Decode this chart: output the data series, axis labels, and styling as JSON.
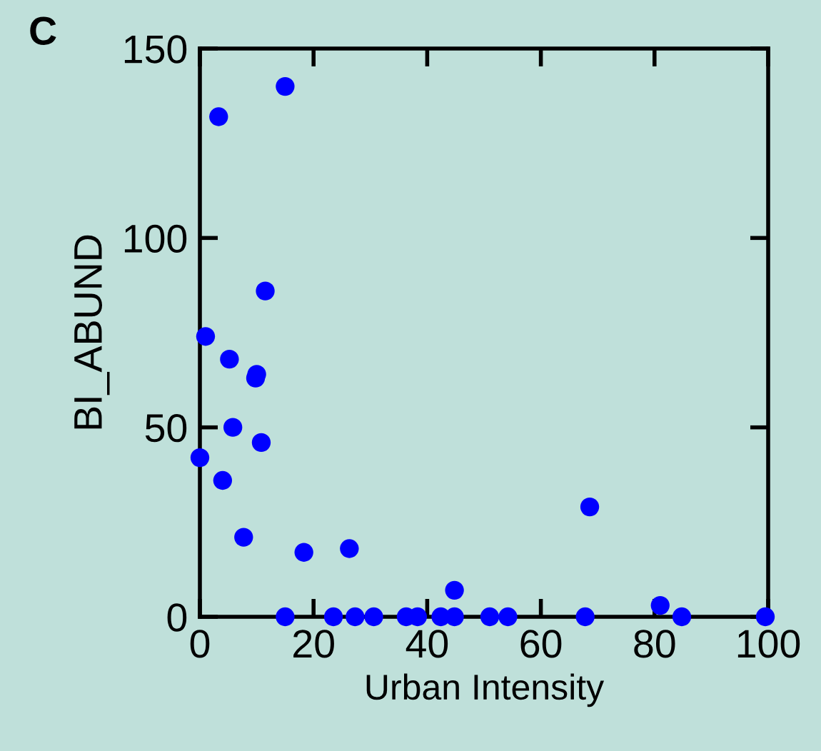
{
  "chart_data": {
    "type": "scatter",
    "title": "C",
    "xlabel": "Urban Intensity",
    "ylabel": "BI_ABUND",
    "x": [
      0,
      1,
      3.3,
      4,
      5.2,
      5.8,
      7.7,
      9.8,
      10,
      10.8,
      11.5,
      15,
      15,
      18.3,
      23.5,
      26.3,
      27.3,
      30.6,
      36.3,
      38.3,
      42.4,
      44.8,
      44.8,
      51,
      54.2,
      67.8,
      68.6,
      81,
      84.8,
      99.5
    ],
    "series": [
      {
        "color": "#0000ff",
        "values": [
          42,
          74,
          132,
          36,
          68,
          50,
          21,
          63,
          64,
          46,
          86,
          140,
          0,
          17,
          0,
          18,
          0,
          0,
          0,
          0,
          0,
          0,
          7,
          0,
          0,
          0,
          29,
          3,
          0,
          0
        ]
      }
    ],
    "xlim": [
      0,
      100
    ],
    "ylim": [
      0,
      150
    ],
    "xticks": [
      0,
      20,
      40,
      60,
      80,
      100
    ],
    "yticks": [
      0,
      50,
      100,
      150
    ],
    "marker": "circle",
    "grid": false,
    "legend": false
  }
}
